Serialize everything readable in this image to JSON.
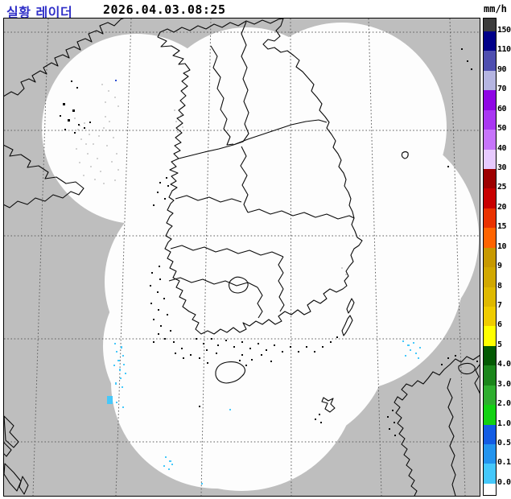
{
  "header": {
    "title": "실황 레이더",
    "title_color": "#3030c8",
    "datetime": "2026.04.03.08:25",
    "unit": "mm/h"
  },
  "legend": {
    "labels": [
      "150",
      "110",
      "90",
      "70",
      "60",
      "50",
      "40",
      "30",
      "25",
      "20",
      "15",
      "10",
      "9",
      "8",
      "7",
      "6",
      "5",
      "4.0",
      "3.0",
      "2.0",
      "1.0",
      "0.5",
      "0.1",
      "0.0"
    ],
    "segment_colors": [
      "#000089",
      "#4f4fb0",
      "#b5b5e1",
      "#8f06e4",
      "#a937f2",
      "#c775fb",
      "#e7cafe",
      "#9d0000",
      "#c80000",
      "#ea3200",
      "#ff6400",
      "#c79900",
      "#d1a800",
      "#dfb900",
      "#efcc00",
      "#ffff00",
      "#045a04",
      "#1b861b",
      "#2fae2f",
      "#12d212",
      "#135ce4",
      "#2394ee",
      "#45c8fb"
    ],
    "cap_color": "#3c3c3c",
    "bottom_color": "#ffffff"
  },
  "map": {
    "background": "#bebebe",
    "coverage": "#fdfdfd",
    "coast": "#0a0a0a",
    "grid": "#606060",
    "clutter": "#d2d2d2"
  },
  "precip": {
    "cyan": "#46c8fa",
    "blue": "#2d4fd2",
    "cyan_cells": [
      [
        142,
        426,
        2,
        2
      ],
      [
        150,
        430,
        2,
        3
      ],
      [
        144,
        436,
        2,
        2
      ],
      [
        152,
        441,
        2,
        2
      ],
      [
        146,
        447,
        3,
        2
      ],
      [
        153,
        452,
        2,
        2
      ],
      [
        148,
        458,
        2,
        3
      ],
      [
        141,
        453,
        2,
        2
      ],
      [
        155,
        463,
        2,
        2
      ],
      [
        149,
        469,
        2,
        2
      ],
      [
        143,
        475,
        2,
        3
      ],
      [
        151,
        480,
        2,
        2
      ],
      [
        133,
        492,
        7,
        10
      ],
      [
        144,
        499,
        2,
        2
      ],
      [
        152,
        505,
        2,
        2
      ],
      [
        205,
        567,
        2,
        2
      ],
      [
        210,
        572,
        3,
        2
      ],
      [
        203,
        578,
        2,
        2
      ],
      [
        209,
        582,
        2,
        2
      ],
      [
        213,
        576,
        2,
        2
      ],
      [
        500,
        423,
        2,
        2
      ],
      [
        506,
        428,
        3,
        2
      ],
      [
        513,
        425,
        2,
        2
      ],
      [
        509,
        434,
        2,
        2
      ],
      [
        516,
        438,
        2,
        2
      ],
      [
        521,
        431,
        2,
        2
      ],
      [
        503,
        441,
        2,
        2
      ],
      [
        519,
        444,
        2,
        2
      ],
      [
        250,
        600,
        2,
        2
      ],
      [
        285,
        508,
        2,
        2
      ]
    ],
    "blue_cells": [
      [
        143,
        99,
        2,
        2
      ]
    ]
  },
  "clutter_cells": [
    [
      92,
      146
    ],
    [
      104,
      152
    ],
    [
      96,
      160
    ],
    [
      110,
      166
    ],
    [
      100,
      172
    ],
    [
      115,
      178
    ],
    [
      94,
      184
    ],
    [
      108,
      190
    ],
    [
      120,
      196
    ],
    [
      98,
      201
    ],
    [
      112,
      206
    ],
    [
      124,
      212
    ],
    [
      103,
      217
    ],
    [
      117,
      222
    ],
    [
      128,
      227
    ],
    [
      135,
      150
    ],
    [
      128,
      158
    ],
    [
      140,
      170
    ],
    [
      132,
      180
    ],
    [
      144,
      190
    ],
    [
      138,
      200
    ],
    [
      146,
      210
    ],
    [
      130,
      144
    ],
    [
      122,
      168
    ],
    [
      136,
      161
    ],
    [
      126,
      104
    ],
    [
      134,
      112
    ],
    [
      142,
      120
    ],
    [
      130,
      126
    ],
    [
      146,
      131
    ],
    [
      216,
      136
    ],
    [
      224,
      142
    ],
    [
      218,
      150
    ],
    [
      226,
      157
    ],
    [
      220,
      163
    ],
    [
      424,
      332
    ],
    [
      429,
      340
    ],
    [
      98,
      155
    ],
    [
      106,
      178
    ],
    [
      142,
      223
    ]
  ]
}
